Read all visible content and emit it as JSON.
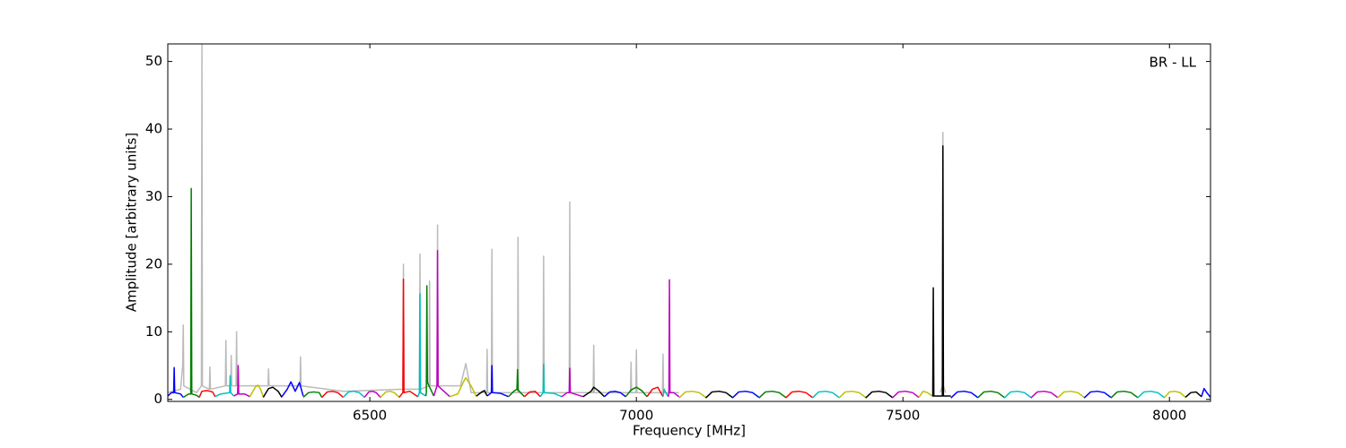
{
  "chart_data": {
    "type": "line",
    "annotation": "BR - LL",
    "x_label": "Frequency [MHz]",
    "y_label": "Amplitude [arbitrary units]",
    "xlim": [
      6121,
      8077
    ],
    "ylim": [
      -0.3,
      52.6
    ],
    "xticks": [
      6500,
      7000,
      7500,
      8000
    ],
    "yticks": [
      0,
      10,
      20,
      30,
      40,
      50
    ],
    "series": [
      {
        "color": "#bbbbbb",
        "x": [
          6121,
          6145,
          6149,
          6150,
          6151,
          6175,
          6184,
          6185,
          6186,
          6199,
          6200,
          6201,
          6229,
          6230,
          6231,
          6239,
          6240,
          6241,
          6249,
          6250,
          6251,
          6309,
          6310,
          6311,
          6369,
          6370,
          6371,
          6450,
          6562,
          6563,
          6564,
          6593,
          6594,
          6595,
          6611,
          6612,
          6613,
          6626,
          6627,
          6628,
          6670,
          6680,
          6690,
          6719,
          6720,
          6721,
          6728,
          6729,
          6730,
          6777,
          6778,
          6779,
          6825,
          6826,
          6827,
          6874,
          6875,
          6876,
          6919,
          6920,
          6921,
          6989,
          6990,
          6991,
          6999,
          7000,
          7001,
          7049,
          7050,
          7051,
          7080,
          7300,
          7570,
          7574,
          7575,
          7576,
          7580
        ],
        "values": [
          1,
          1.5,
          5,
          11,
          2,
          1,
          2,
          52.6,
          2,
          1.5,
          4.8,
          1.5,
          2,
          8.7,
          2,
          2,
          6.5,
          2,
          2,
          10,
          2,
          2,
          4.5,
          2,
          2,
          6.3,
          2,
          1.2,
          1.5,
          20,
          1.5,
          1.5,
          21.5,
          1.5,
          2,
          17.5,
          2,
          2,
          25.8,
          2,
          2,
          5.3,
          1,
          1,
          7.4,
          1,
          1,
          22.2,
          1,
          1,
          24,
          1,
          1,
          21.2,
          1,
          1,
          29.2,
          1,
          1,
          8,
          1,
          1,
          5.5,
          1,
          1,
          7.3,
          1,
          1,
          6.7,
          1,
          1,
          null,
          1,
          2,
          39.5,
          2,
          1
        ]
      },
      {
        "color": "#0000ff",
        "x": [
          6121,
          6128,
          6132,
          6133,
          6134,
          6145,
          6150
        ],
        "values": [
          0.5,
          1,
          1,
          4.7,
          1,
          0.8,
          0.3
        ]
      },
      {
        "color": "#008000",
        "x": [
          6150,
          6160,
          6164,
          6165,
          6166,
          6175,
          6180
        ],
        "values": [
          0.3,
          0.8,
          0.8,
          31.2,
          0.8,
          0.6,
          0.3
        ]
      },
      {
        "color": "#ff0000",
        "x": [
          6180,
          6185,
          6195,
          6205,
          6210
        ],
        "values": [
          0.3,
          1.2,
          1.3,
          1.1,
          0.4
        ]
      },
      {
        "color": "#00bfbf",
        "x": [
          6210,
          6220,
          6237,
          6238,
          6239,
          6245
        ],
        "values": [
          0.4,
          0.8,
          1,
          3.5,
          1,
          0.5
        ]
      },
      {
        "color": "#bf00bf",
        "x": [
          6245,
          6252,
          6253,
          6254,
          6265,
          6275
        ],
        "values": [
          0.5,
          0.8,
          5,
          0.8,
          0.8,
          0.4
        ]
      },
      {
        "color": "#bfbf00",
        "x": [
          6275,
          6285,
          6290,
          6295,
          6300
        ],
        "values": [
          0.4,
          1.8,
          2.1,
          1.5,
          0.4
        ]
      },
      {
        "color": "#000000",
        "x": [
          6300,
          6310,
          6318,
          6328,
          6335
        ],
        "values": [
          0.3,
          1.6,
          1.8,
          1.2,
          0.3
        ]
      },
      {
        "color": "#0000ff",
        "x": [
          6335,
          6345,
          6352,
          6360,
          6368,
          6375
        ],
        "values": [
          0.4,
          1.5,
          2.6,
          1.2,
          2.5,
          0.5
        ]
      },
      {
        "color": "#008000",
        "x": [
          6375,
          6385,
          6395,
          6405,
          6410
        ],
        "values": [
          0.3,
          1.0,
          1.1,
          1.0,
          0.3
        ]
      },
      {
        "color": "#ff0000",
        "x": [
          6410,
          6420,
          6430,
          6440,
          6450
        ],
        "values": [
          0.3,
          1.1,
          1.2,
          1.0,
          0.3
        ]
      },
      {
        "color": "#00bfbf",
        "x": [
          6450,
          6460,
          6470,
          6480,
          6490
        ],
        "values": [
          0.3,
          1.1,
          1.2,
          1.0,
          0.3
        ]
      },
      {
        "color": "#bf00bf",
        "x": [
          6490,
          6498,
          6505,
          6512,
          6520
        ],
        "values": [
          0.3,
          1.1,
          1.2,
          1.0,
          0.3
        ]
      },
      {
        "color": "#bfbf00",
        "x": [
          6520,
          6530,
          6538,
          6546,
          6555
        ],
        "values": [
          0.3,
          1.1,
          1.2,
          1.0,
          0.3
        ]
      },
      {
        "color": "#ff0000",
        "x": [
          6555,
          6562,
          6563,
          6564,
          6575,
          6590
        ],
        "values": [
          0.3,
          1,
          17.8,
          1,
          1.2,
          0.4
        ]
      },
      {
        "color": "#00bfbf",
        "x": [
          6590,
          6593,
          6594,
          6595,
          6605
        ],
        "values": [
          0.4,
          1,
          15.6,
          1,
          0.5
        ]
      },
      {
        "color": "#008000",
        "x": [
          6605,
          6606,
          6607,
          6608,
          6620
        ],
        "values": [
          0.5,
          1,
          16.8,
          2.5,
          0.5
        ]
      },
      {
        "color": "#bf00bf",
        "x": [
          6620,
          6626,
          6627,
          6628,
          6650
        ],
        "values": [
          0.5,
          2,
          22,
          2,
          0.4
        ]
      },
      {
        "color": "#bfbf00",
        "x": [
          6650,
          6665,
          6675,
          6680,
          6690,
          6700
        ],
        "values": [
          0.4,
          0.8,
          2.5,
          3.2,
          2,
          0.4
        ]
      },
      {
        "color": "#000000",
        "x": [
          6700,
          6710,
          6715,
          6720
        ],
        "values": [
          0.5,
          1.1,
          1.3,
          0.5
        ]
      },
      {
        "color": "#0000ff",
        "x": [
          6720,
          6728,
          6729,
          6730,
          6745,
          6760
        ],
        "values": [
          0.5,
          1,
          5,
          1,
          0.9,
          0.4
        ]
      },
      {
        "color": "#008000",
        "x": [
          6760,
          6770,
          6776,
          6777,
          6778,
          6790
        ],
        "values": [
          0.4,
          1.2,
          1.5,
          4.4,
          1.4,
          0.4
        ]
      },
      {
        "color": "#ff0000",
        "x": [
          6790,
          6800,
          6810,
          6820
        ],
        "values": [
          0.4,
          1.1,
          1.2,
          0.4
        ]
      },
      {
        "color": "#00bfbf",
        "x": [
          6820,
          6825,
          6826,
          6827,
          6845,
          6860
        ],
        "values": [
          0.4,
          1,
          5.2,
          1,
          0.9,
          0.4
        ]
      },
      {
        "color": "#bf00bf",
        "x": [
          6860,
          6870,
          6874,
          6875,
          6876,
          6900
        ],
        "values": [
          0.4,
          1,
          1,
          4.6,
          1,
          0.4
        ]
      },
      {
        "color": "#000000",
        "x": [
          6900,
          6915,
          6920,
          6930,
          6940
        ],
        "values": [
          0.4,
          1.2,
          1.8,
          1.2,
          0.4
        ]
      },
      {
        "color": "#0000ff",
        "x": [
          6940,
          6950,
          6960,
          6970,
          6980
        ],
        "values": [
          0.4,
          1.1,
          1.2,
          1,
          0.4
        ]
      },
      {
        "color": "#008000",
        "x": [
          6980,
          6990,
          7000,
          7010,
          7020
        ],
        "values": [
          0.4,
          1.4,
          1.8,
          1.3,
          0.4
        ]
      },
      {
        "color": "#ff0000",
        "x": [
          7020,
          7030,
          7040,
          7050
        ],
        "values": [
          0.4,
          1.5,
          1.8,
          0.4
        ]
      },
      {
        "color": "#00bfbf",
        "x": [
          7050,
          7052,
          7055,
          7060
        ],
        "values": [
          0.4,
          1.5,
          1,
          0.4
        ]
      },
      {
        "color": "#bf00bf",
        "x": [
          7060,
          7061,
          7062,
          7063,
          7070,
          7080
        ],
        "values": [
          0.4,
          1,
          17.7,
          1,
          1,
          0.4
        ]
      },
      {
        "color": "#bfbf00",
        "x": [
          7080,
          7092,
          7105,
          7118,
          7130
        ],
        "values": [
          0.2,
          1.1,
          1.2,
          1.0,
          0.3
        ]
      },
      {
        "color": "#000000",
        "x": [
          7130,
          7142,
          7155,
          7168,
          7180
        ],
        "values": [
          0.2,
          1.1,
          1.2,
          1.0,
          0.3
        ]
      },
      {
        "color": "#0000ff",
        "x": [
          7180,
          7192,
          7205,
          7218,
          7230
        ],
        "values": [
          0.2,
          1.1,
          1.2,
          1.0,
          0.3
        ]
      },
      {
        "color": "#008000",
        "x": [
          7230,
          7242,
          7255,
          7268,
          7280
        ],
        "values": [
          0.2,
          1.1,
          1.2,
          1.0,
          0.3
        ]
      },
      {
        "color": "#ff0000",
        "x": [
          7280,
          7292,
          7305,
          7318,
          7330
        ],
        "values": [
          0.2,
          1.1,
          1.2,
          1.0,
          0.3
        ]
      },
      {
        "color": "#00bfbf",
        "x": [
          7330,
          7342,
          7355,
          7368,
          7380
        ],
        "values": [
          0.2,
          1.1,
          1.2,
          1.0,
          0.3
        ]
      },
      {
        "color": "#bfbf00",
        "x": [
          7380,
          7392,
          7405,
          7418,
          7430
        ],
        "values": [
          0.2,
          1.1,
          1.2,
          1.0,
          0.3
        ]
      },
      {
        "color": "#000000",
        "x": [
          7430,
          7442,
          7455,
          7468,
          7480
        ],
        "values": [
          0.2,
          1.1,
          1.2,
          1.0,
          0.3
        ]
      },
      {
        "color": "#bf00bf",
        "x": [
          7480,
          7492,
          7505,
          7518,
          7530
        ],
        "values": [
          0.2,
          1.1,
          1.2,
          1.0,
          0.3
        ]
      },
      {
        "color": "#bfbf00",
        "x": [
          7530,
          7538,
          7546,
          7555
        ],
        "values": [
          0.3,
          1.2,
          1.0,
          0.5
        ]
      },
      {
        "color": "#000000",
        "x": [
          7555,
          7556,
          7557,
          7558,
          7570,
          7574,
          7575,
          7576,
          7590
        ],
        "values": [
          0.5,
          0.5,
          16.5,
          0.5,
          0.5,
          0.5,
          37.5,
          0.5,
          0.5
        ]
      },
      {
        "color": "#0000ff",
        "x": [
          7590,
          7602,
          7615,
          7628,
          7640
        ],
        "values": [
          0.2,
          1.1,
          1.2,
          1.0,
          0.3
        ]
      },
      {
        "color": "#008000",
        "x": [
          7640,
          7652,
          7665,
          7678,
          7690
        ],
        "values": [
          0.2,
          1.1,
          1.2,
          1.0,
          0.3
        ]
      },
      {
        "color": "#00bfbf",
        "x": [
          7690,
          7702,
          7715,
          7728,
          7740
        ],
        "values": [
          0.2,
          1.1,
          1.2,
          1.0,
          0.3
        ]
      },
      {
        "color": "#bf00bf",
        "x": [
          7740,
          7752,
          7765,
          7778,
          7790
        ],
        "values": [
          0.2,
          1.1,
          1.2,
          1.0,
          0.3
        ]
      },
      {
        "color": "#bfbf00",
        "x": [
          7790,
          7802,
          7815,
          7828,
          7840
        ],
        "values": [
          0.2,
          1.1,
          1.2,
          1.0,
          0.3
        ]
      },
      {
        "color": "#0000ff",
        "x": [
          7840,
          7852,
          7865,
          7878,
          7890
        ],
        "values": [
          0.2,
          1.1,
          1.2,
          1.0,
          0.3
        ]
      },
      {
        "color": "#008000",
        "x": [
          7890,
          7902,
          7915,
          7928,
          7940
        ],
        "values": [
          0.2,
          1.1,
          1.2,
          1.0,
          0.3
        ]
      },
      {
        "color": "#00bfbf",
        "x": [
          7940,
          7952,
          7965,
          7978,
          7990
        ],
        "values": [
          0.2,
          1.1,
          1.2,
          1.0,
          0.3
        ]
      },
      {
        "color": "#bfbf00",
        "x": [
          7990,
          8000,
          8010,
          8020,
          8030
        ],
        "values": [
          0.2,
          1.1,
          1.2,
          1.0,
          0.3
        ]
      },
      {
        "color": "#000000",
        "x": [
          8030,
          8040,
          8050,
          8060
        ],
        "values": [
          0.3,
          1,
          1.1,
          0.4
        ]
      },
      {
        "color": "#0000ff",
        "x": [
          8060,
          8065,
          8070,
          8077
        ],
        "values": [
          0.4,
          1.6,
          1.0,
          0.3
        ]
      }
    ]
  }
}
